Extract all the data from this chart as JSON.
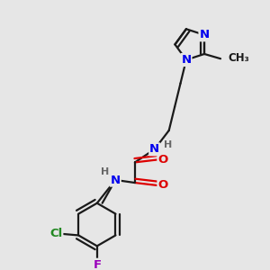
{
  "background_color": "#e6e6e6",
  "bond_color": "#1a1a1a",
  "bond_width": 1.6,
  "atom_colors": {
    "N": "#0000ee",
    "O": "#dd0000",
    "Cl": "#228822",
    "F": "#9900bb",
    "C": "#1a1a1a",
    "H": "#666666"
  },
  "font_size_atom": 9.5,
  "font_size_H": 8.0,
  "font_size_methyl": 8.5
}
